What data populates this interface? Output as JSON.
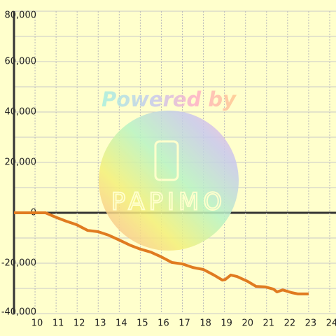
{
  "chart_data": {
    "type": "line",
    "watermark": "Powered by",
    "watermark_logo": "PAPIMO",
    "x": [
      9,
      10.5,
      10.97,
      11.47,
      11.97,
      12.5,
      13,
      13.5,
      14,
      14.5,
      15,
      15.5,
      16,
      16.5,
      17,
      17.5,
      18,
      18.5,
      18.9,
      19.03,
      19.3,
      19.6,
      20.1,
      20.5,
      20.93,
      21.33,
      21.5,
      21.77,
      22.2,
      22.5,
      23
    ],
    "series": [
      {
        "color": "#e07b20",
        "values": [
          0,
          0,
          -1700,
          -3300,
          -4700,
          -7000,
          -7500,
          -8900,
          -10800,
          -12800,
          -14400,
          -15600,
          -17500,
          -19700,
          -20300,
          -21700,
          -22500,
          -24700,
          -26700,
          -26500,
          -24700,
          -25300,
          -27200,
          -29200,
          -29400,
          -30300,
          -31400,
          -30600,
          -31700,
          -32200,
          -32200
        ]
      }
    ],
    "xlim": [
      9,
      24.3
    ],
    "ylim": [
      -40000,
      80000
    ],
    "xticks": [
      10,
      11,
      12,
      13,
      14,
      15,
      16,
      17,
      18,
      19,
      20,
      21,
      22,
      23,
      24
    ],
    "yticks": [
      {
        "value": -40000,
        "label": "-40,000"
      },
      {
        "value": -20000,
        "label": "-20,000"
      },
      0,
      {
        "value": 20000,
        "label": "20,000"
      },
      {
        "value": 40000,
        "label": "40,000"
      },
      {
        "value": 60000,
        "label": "60,000"
      },
      {
        "value": 80000,
        "label": "80,000"
      }
    ],
    "ygrid": [
      -30000,
      -10000,
      10000,
      30000,
      50000,
      70000
    ],
    "grid": true
  }
}
